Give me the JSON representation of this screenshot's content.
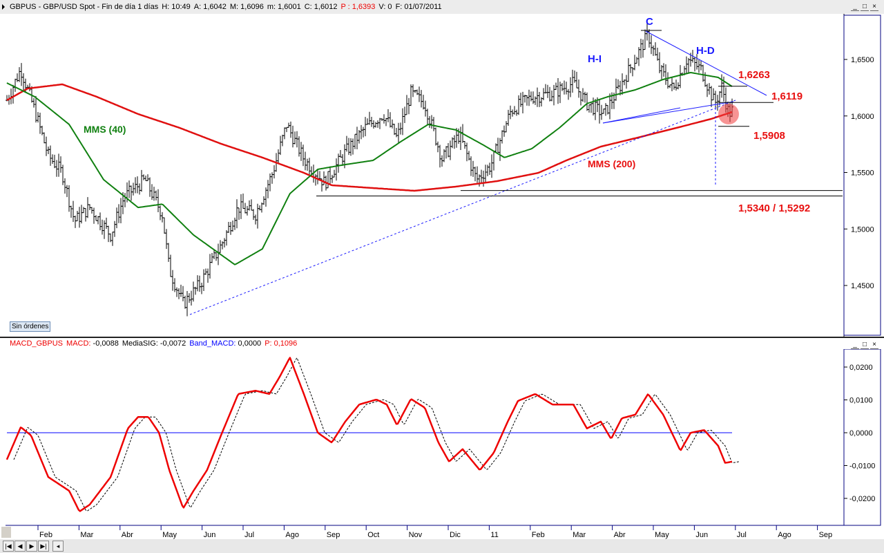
{
  "header": {
    "symbol": "GBPUS - GBP/USD Spot - Fin de día 1 días",
    "h": "H: 10:49",
    "a": "A: 1,6042",
    "m": "M: 1,6096",
    "mn": "m: 1,6001",
    "c": "C: 1,6012",
    "p": "P : 1,6393",
    "v": "V: 0",
    "f": "F: 01/07/2011"
  },
  "macd_header": {
    "name": "MACD_GBPUS",
    "macd_label": "MACD:",
    "macd_value": "-0,0088",
    "sig_label": "MediaSIG:",
    "sig_value": "-0,0072",
    "band_label": "Band_MACD:",
    "band_value": "0,0000",
    "p_label": "P: 0,1096"
  },
  "order_button": "Sin órdenes",
  "window_buttons": [
    "_",
    "□",
    "×"
  ],
  "nav_buttons": [
    "|◀",
    "◀",
    "▶",
    "▶|",
    "◂"
  ],
  "colors": {
    "mms40": "#108010",
    "mms200": "#e01010",
    "annotation_blue": "#1a1aff",
    "annotation_red": "#e81010"
  },
  "chart_data": [
    {
      "type": "ohlc",
      "title": "GBP/USD Spot",
      "ylim": [
        1.4,
        1.7
      ],
      "y_ticks": [
        "1,6500",
        "1,6000",
        "1,5500",
        "1,5000",
        "1,4500"
      ],
      "y_tick_values": [
        1.65,
        1.6,
        1.55,
        1.5,
        1.45
      ],
      "x_ticks": [
        "Feb",
        "Mar",
        "Abr",
        "May",
        "Jun",
        "Jul",
        "Ago",
        "Sep",
        "Oct",
        "Nov",
        "Dic",
        "11",
        "Feb",
        "Mar",
        "Abr",
        "May",
        "Jun",
        "Jul",
        "Ago",
        "Sep"
      ],
      "price_t": [
        0.24,
        0.58,
        0.92,
        1.25,
        1.59,
        1.89,
        2.26,
        2.77,
        3.1,
        3.61,
        4.03,
        4.2,
        4.54,
        4.96,
        5.46,
        5.88,
        6.3,
        6.72,
        7.06,
        7.48,
        7.99,
        8.49,
        8.98,
        9.42,
        9.75,
        10.09,
        10.43,
        10.85,
        11.27,
        11.69,
        12.03,
        12.53,
        13.04,
        13.54,
        14.05,
        14.38,
        14.8,
        15.23,
        15.56,
        15.87,
        16.15,
        16.49,
        16.82,
        17.16,
        17.5,
        17.67,
        17.84,
        17.92
      ],
      "price": [
        1.6139,
        1.6414,
        1.6047,
        1.565,
        1.5497,
        1.5069,
        1.5191,
        1.4947,
        1.5283,
        1.5436,
        1.513,
        1.4641,
        1.4335,
        1.4518,
        1.4855,
        1.5191,
        1.513,
        1.5497,
        1.5925,
        1.5619,
        1.5405,
        1.568,
        1.5895,
        1.6017,
        1.5803,
        1.62,
        1.6109,
        1.5619,
        1.5833,
        1.5436,
        1.5558,
        1.6047,
        1.617,
        1.62,
        1.6292,
        1.6109,
        1.6017,
        1.6292,
        1.6506,
        1.672,
        1.6414,
        1.6231,
        1.6506,
        1.6414,
        1.6109,
        1.6261,
        1.6017,
        1.6047
      ],
      "mms40_t": [
        0.24,
        0.92,
        1.76,
        2.6,
        3.44,
        4.03,
        4.79,
        5.8,
        6.47,
        7.14,
        7.82,
        8.49,
        9.17,
        9.84,
        10.51,
        11.19,
        11.86,
        12.37,
        13.04,
        13.71,
        14.38,
        14.89,
        15.56,
        16.24,
        16.91,
        17.58,
        17.92
      ],
      "mms40": [
        1.6292,
        1.617,
        1.5925,
        1.5436,
        1.519,
        1.522,
        1.4947,
        1.4684,
        1.4824,
        1.5313,
        1.5528,
        1.557,
        1.5607,
        1.5772,
        1.5925,
        1.5876,
        1.5742,
        1.5632,
        1.5711,
        1.5895,
        1.6109,
        1.617,
        1.6231,
        1.6323,
        1.6384,
        1.6341,
        1.6261
      ],
      "mms200_t": [
        0.24,
        0.75,
        1.59,
        2.43,
        3.44,
        4.45,
        5.46,
        6.47,
        7.48,
        8.16,
        9.17,
        10.18,
        11.19,
        12.2,
        13.2,
        13.88,
        14.72,
        15.56,
        16.57,
        17.41,
        17.92
      ],
      "mms200": [
        1.6139,
        1.6243,
        1.628,
        1.617,
        1.6017,
        1.5895,
        1.5754,
        1.5632,
        1.5497,
        1.5387,
        1.5362,
        1.5338,
        1.5375,
        1.5424,
        1.5497,
        1.5607,
        1.5729,
        1.5803,
        1.5895,
        1.5974,
        1.6035
      ],
      "annotations": {
        "c": "C",
        "hi": "H-I",
        "hd": "H-D",
        "mms40": "MMS (40)",
        "mms200": "MMS (200)",
        "l1": "1,6263",
        "l2": "1,6119",
        "l3": "1,5908",
        "l4": "1,5340 / 1,5292"
      },
      "levels": [
        1.6263,
        1.6119,
        1.5908,
        1.534,
        1.5292
      ]
    },
    {
      "type": "line",
      "title": "MACD_GBPUS",
      "ylim": [
        -0.028,
        0.026
      ],
      "y_ticks": [
        "0,0200",
        "0,0100",
        "0,0000",
        "-0,0100",
        "-0,0200"
      ],
      "y_tick_values": [
        0.02,
        0.01,
        0,
        -0.01,
        -0.02
      ],
      "macd_t": [
        0.24,
        0.58,
        0.83,
        1.25,
        1.76,
        2.01,
        2.26,
        2.77,
        3.19,
        3.44,
        3.69,
        3.95,
        4.2,
        4.54,
        4.79,
        5.12,
        5.46,
        5.88,
        6.3,
        6.64,
        6.89,
        7.14,
        7.48,
        7.82,
        8.16,
        8.49,
        8.83,
        9.25,
        9.5,
        9.75,
        10.09,
        10.43,
        10.76,
        11.02,
        11.35,
        11.77,
        12.11,
        12.45,
        12.7,
        13.12,
        13.54,
        14.05,
        14.38,
        14.72,
        14.97,
        15.23,
        15.56,
        15.87,
        16.24,
        16.66,
        16.91,
        17.24,
        17.58,
        17.75,
        17.92
      ],
      "macd": [
        -0.0082,
        0.0017,
        -0.0008,
        -0.0135,
        -0.0177,
        -0.024,
        -0.0219,
        -0.0135,
        0.0013,
        0.0048,
        0.0048,
        0,
        -0.0114,
        -0.023,
        -0.0177,
        -0.0114,
        -0.0008,
        0.0118,
        0.0128,
        0.0118,
        0.017,
        0.0229,
        0.0118,
        0,
        -0.003,
        0.0034,
        0.0086,
        0.0101,
        0.0086,
        0.0023,
        0.0103,
        0.0076,
        -0.003,
        -0.0088,
        -0.005,
        -0.0114,
        -0.0061,
        0.0034,
        0.0097,
        0.0118,
        0.0086,
        0.0086,
        0.0013,
        0.0034,
        -0.0019,
        0.0044,
        0.0055,
        0.0118,
        0.0055,
        -0.0055,
        0,
        0.0008,
        -0.004,
        -0.0092,
        -0.0088
      ],
      "band": 0
    }
  ]
}
